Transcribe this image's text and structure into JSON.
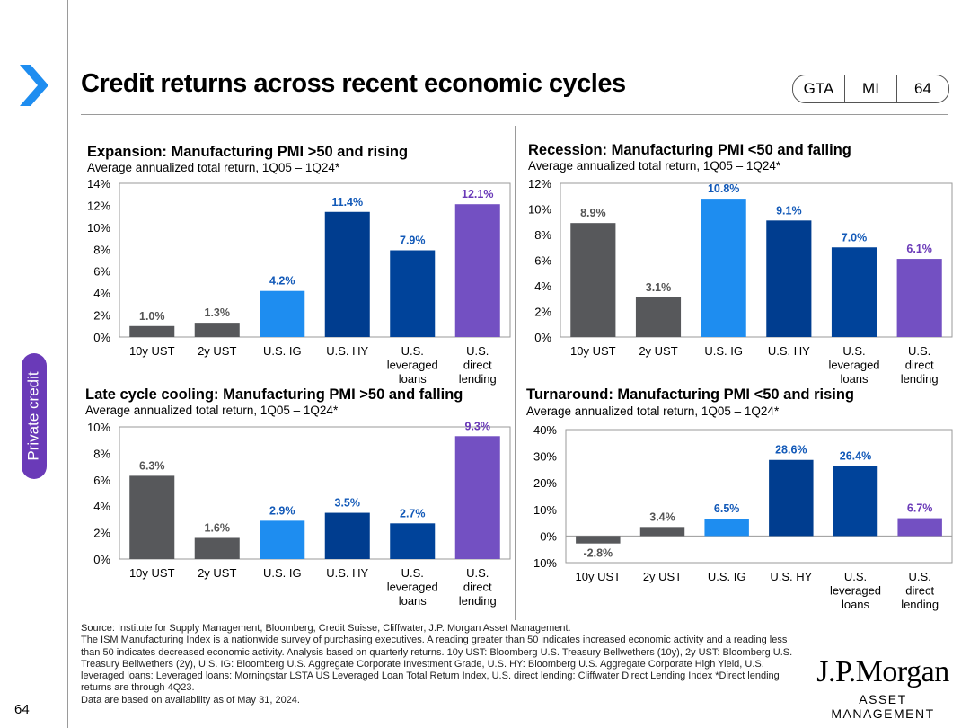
{
  "page": {
    "title": "Credit returns across recent economic cycles",
    "page_number": "64",
    "side_tab": "Private credit"
  },
  "tags": [
    "GTA",
    "MI",
    "64"
  ],
  "colors": {
    "ust": "#57585b",
    "ig": "#1e8df0",
    "hy": "#003d8f",
    "lev": "#00439a",
    "direct": "#7350c2",
    "label_blue": "#1259b8",
    "label_purple": "#6a3ab8",
    "label_gray": "#555555",
    "accent": "#6a3ab8",
    "chevron": "#1e8df0"
  },
  "chart_data": [
    {
      "type": "bar",
      "title": "Expansion: Manufacturing PMI >50 and rising",
      "subtitle": "Average annualized total return, 1Q05 – 1Q24*",
      "categories": [
        [
          "10y UST"
        ],
        [
          "2y UST"
        ],
        [
          "U.S. IG"
        ],
        [
          "U.S. HY"
        ],
        [
          "U.S.",
          "leveraged",
          "loans"
        ],
        [
          "U.S.",
          "direct",
          "lending"
        ]
      ],
      "values": [
        1.0,
        1.3,
        4.2,
        11.4,
        7.9,
        12.1
      ],
      "labels": [
        "1.0%",
        "1.3%",
        "4.2%",
        "11.4%",
        "7.9%",
        "12.1%"
      ],
      "ylim": [
        0,
        14
      ],
      "yticks": [
        0,
        2,
        4,
        6,
        8,
        10,
        12,
        14
      ],
      "ytick_labels": [
        "0%",
        "2%",
        "4%",
        "6%",
        "8%",
        "10%",
        "12%",
        "14%"
      ]
    },
    {
      "type": "bar",
      "title": "Recession: Manufacturing PMI <50 and falling",
      "subtitle": "Average annualized total return, 1Q05 – 1Q24*",
      "categories": [
        [
          "10y UST"
        ],
        [
          "2y UST"
        ],
        [
          "U.S. IG"
        ],
        [
          "U.S. HY"
        ],
        [
          "U.S.",
          "leveraged",
          "loans"
        ],
        [
          "U.S.",
          "direct",
          "lending"
        ]
      ],
      "values": [
        8.9,
        3.1,
        10.8,
        9.1,
        7.0,
        6.1
      ],
      "labels": [
        "8.9%",
        "3.1%",
        "10.8%",
        "9.1%",
        "7.0%",
        "6.1%"
      ],
      "ylim": [
        0,
        12
      ],
      "yticks": [
        0,
        2,
        4,
        6,
        8,
        10,
        12
      ],
      "ytick_labels": [
        "0%",
        "2%",
        "4%",
        "6%",
        "8%",
        "10%",
        "12%"
      ]
    },
    {
      "type": "bar",
      "title": "Late cycle cooling: Manufacturing PMI >50 and falling",
      "subtitle": "Average annualized total return, 1Q05 – 1Q24*",
      "categories": [
        [
          "10y UST"
        ],
        [
          "2y UST"
        ],
        [
          "U.S. IG"
        ],
        [
          "U.S. HY"
        ],
        [
          "U.S.",
          "leveraged",
          "loans"
        ],
        [
          "U.S.",
          "direct",
          "lending"
        ]
      ],
      "values": [
        6.3,
        1.6,
        2.9,
        3.5,
        2.7,
        9.3
      ],
      "labels": [
        "6.3%",
        "1.6%",
        "2.9%",
        "3.5%",
        "2.7%",
        "9.3%"
      ],
      "ylim": [
        0,
        10
      ],
      "yticks": [
        0,
        2,
        4,
        6,
        8,
        10
      ],
      "ytick_labels": [
        "0%",
        "2%",
        "4%",
        "6%",
        "8%",
        "10%"
      ]
    },
    {
      "type": "bar",
      "title": "Turnaround: Manufacturing PMI <50 and rising",
      "subtitle": "Average annualized total return, 1Q05 – 1Q24*",
      "categories": [
        [
          "10y UST"
        ],
        [
          "2y UST"
        ],
        [
          "U.S. IG"
        ],
        [
          "U.S. HY"
        ],
        [
          "U.S.",
          "leveraged",
          "loans"
        ],
        [
          "U.S.",
          "direct",
          "lending"
        ]
      ],
      "values": [
        -2.8,
        3.4,
        6.5,
        28.6,
        26.4,
        6.7
      ],
      "labels": [
        "-2.8%",
        "3.4%",
        "6.5%",
        "28.6%",
        "26.4%",
        "6.7%"
      ],
      "ylim": [
        -10,
        40
      ],
      "yticks": [
        -10,
        0,
        10,
        20,
        30,
        40
      ],
      "ytick_labels": [
        "-10%",
        "0%",
        "10%",
        "20%",
        "30%",
        "40%"
      ]
    }
  ],
  "footer": {
    "source": "Source: Institute for Supply Management, Bloomberg, Credit Suisse, Cliffwater, J.P. Morgan Asset Management.",
    "note": "The ISM Manufacturing Index is a nationwide survey of purchasing executives. A reading greater than 50 indicates increased economic activity and a reading less than 50 indicates decreased economic activity. Analysis based on quarterly returns. 10y UST: Bloomberg U.S. Treasury Bellwethers (10y), 2y UST: Bloomberg U.S. Treasury Bellwethers (2y), U.S. IG: Bloomberg U.S. Aggregate Corporate Investment Grade, U.S. HY: Bloomberg U.S. Aggregate Corporate High Yield, U.S. leveraged loans: Leveraged loans: Morningstar LSTA US Leveraged Loan Total Return Index, U.S. direct lending: Cliffwater Direct Lending Index *Direct lending returns are through 4Q23.",
    "date": "Data are based on availability as of May 31, 2024."
  },
  "logo": {
    "main": "J.P.Morgan",
    "sub": "ASSET MANAGEMENT"
  }
}
